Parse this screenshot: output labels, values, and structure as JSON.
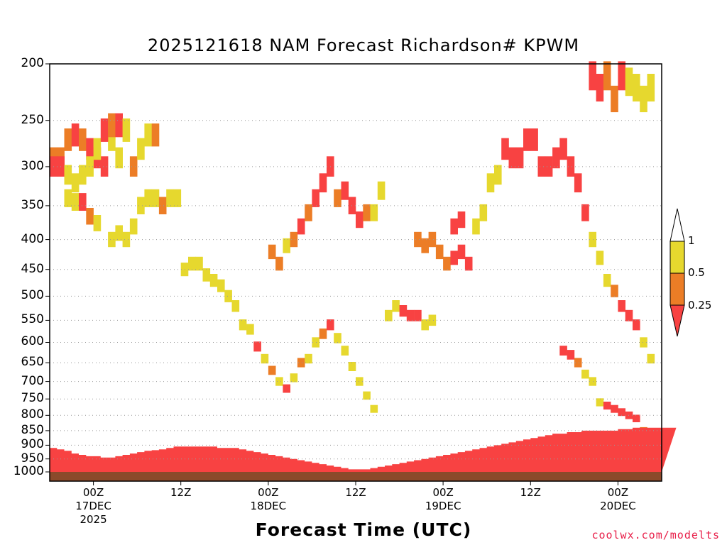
{
  "colors": {
    "yellow": "#e6d82e",
    "orange": "#ec7d26",
    "red": "#f84242",
    "ground": "#8b4a2b"
  },
  "credit": "coolwx.com/modelts",
  "chart_data": {
    "type": "heatmap",
    "title": "2025121618 NAM Forecast Richardson# KPWM",
    "xlabel": "Forecast Time (UTC)",
    "ylabel": "",
    "y_scale": "log-pressure",
    "y_ticks": [
      200,
      250,
      300,
      350,
      400,
      450,
      500,
      550,
      600,
      650,
      700,
      750,
      800,
      850,
      900,
      950,
      1000
    ],
    "ylim": [
      1000,
      200
    ],
    "x_start": "2025-12-16 18Z",
    "x_step_hours": 1,
    "x_ticks": [
      {
        "hour": 6,
        "label": "00Z",
        "date": "17DEC",
        "year": "2025"
      },
      {
        "hour": 18,
        "label": "12Z",
        "date": "",
        "year": ""
      },
      {
        "hour": 30,
        "label": "00Z",
        "date": "18DEC",
        "year": ""
      },
      {
        "hour": 42,
        "label": "12Z",
        "date": "",
        "year": ""
      },
      {
        "hour": 54,
        "label": "00Z",
        "date": "19DEC",
        "year": ""
      },
      {
        "hour": 66,
        "label": "12Z",
        "date": "",
        "year": ""
      },
      {
        "hour": 78,
        "label": "00Z",
        "date": "20DEC",
        "year": ""
      }
    ],
    "legend": {
      "placement": "right",
      "levels": [
        {
          "label": "1",
          "color": "#ffffff"
        },
        {
          "label": "0.5",
          "color": "#e6d82e"
        },
        {
          "label": "0.25",
          "color": "#ec7d26"
        },
        {
          "label": "",
          "color": "#f84242"
        }
      ]
    },
    "cell_legend": {
      "1": "0.5-1",
      "2": "0.25-0.5",
      "3": "<0.25"
    },
    "cells": [
      [
        0,
        290,
        2
      ],
      [
        1,
        290,
        2
      ],
      [
        2,
        270,
        2
      ],
      [
        3,
        265,
        3
      ],
      [
        4,
        270,
        2
      ],
      [
        5,
        280,
        3
      ],
      [
        6,
        290,
        3
      ],
      [
        7,
        300,
        3
      ],
      [
        8,
        270,
        1
      ],
      [
        9,
        290,
        1
      ],
      [
        0,
        300,
        3
      ],
      [
        1,
        300,
        3
      ],
      [
        2,
        310,
        1
      ],
      [
        3,
        320,
        1
      ],
      [
        4,
        310,
        1
      ],
      [
        5,
        300,
        1
      ],
      [
        6,
        280,
        1
      ],
      [
        7,
        260,
        3
      ],
      [
        8,
        255,
        2
      ],
      [
        9,
        255,
        3
      ],
      [
        10,
        260,
        1
      ],
      [
        11,
        300,
        2
      ],
      [
        12,
        280,
        1
      ],
      [
        13,
        265,
        1
      ],
      [
        14,
        265,
        2
      ],
      [
        2,
        340,
        1
      ],
      [
        3,
        345,
        1
      ],
      [
        4,
        345,
        3
      ],
      [
        5,
        365,
        2
      ],
      [
        6,
        375,
        1
      ],
      [
        8,
        400,
        1
      ],
      [
        9,
        390,
        1
      ],
      [
        10,
        400,
        1
      ],
      [
        11,
        380,
        1
      ],
      [
        12,
        350,
        1
      ],
      [
        13,
        340,
        1
      ],
      [
        14,
        340,
        1
      ],
      [
        15,
        350,
        2
      ],
      [
        16,
        340,
        1
      ],
      [
        17,
        340,
        1
      ],
      [
        18,
        450,
        1
      ],
      [
        19,
        440,
        1
      ],
      [
        20,
        440,
        1
      ],
      [
        21,
        460,
        1
      ],
      [
        22,
        470,
        1
      ],
      [
        23,
        480,
        1
      ],
      [
        24,
        500,
        1
      ],
      [
        25,
        520,
        1
      ],
      [
        26,
        560,
        1
      ],
      [
        27,
        570,
        1
      ],
      [
        28,
        610,
        3
      ],
      [
        29,
        640,
        1
      ],
      [
        30,
        670,
        2
      ],
      [
        31,
        700,
        1
      ],
      [
        32,
        720,
        3
      ],
      [
        33,
        690,
        1
      ],
      [
        34,
        650,
        2
      ],
      [
        35,
        640,
        1
      ],
      [
        36,
        600,
        1
      ],
      [
        37,
        580,
        2
      ],
      [
        38,
        560,
        3
      ],
      [
        39,
        590,
        1
      ],
      [
        40,
        620,
        1
      ],
      [
        41,
        660,
        1
      ],
      [
        42,
        700,
        1
      ],
      [
        43,
        740,
        1
      ],
      [
        44,
        780,
        1
      ],
      [
        30,
        420,
        2
      ],
      [
        31,
        440,
        2
      ],
      [
        32,
        410,
        1
      ],
      [
        33,
        400,
        2
      ],
      [
        34,
        380,
        3
      ],
      [
        35,
        360,
        2
      ],
      [
        36,
        340,
        3
      ],
      [
        37,
        320,
        3
      ],
      [
        38,
        300,
        3
      ],
      [
        39,
        340,
        2
      ],
      [
        40,
        330,
        3
      ],
      [
        41,
        350,
        3
      ],
      [
        42,
        370,
        3
      ],
      [
        43,
        360,
        2
      ],
      [
        44,
        360,
        1
      ],
      [
        45,
        330,
        1
      ],
      [
        46,
        540,
        1
      ],
      [
        47,
        520,
        1
      ],
      [
        48,
        530,
        3
      ],
      [
        49,
        540,
        3
      ],
      [
        50,
        540,
        3
      ],
      [
        51,
        560,
        1
      ],
      [
        52,
        550,
        1
      ],
      [
        50,
        400,
        2
      ],
      [
        51,
        410,
        2
      ],
      [
        52,
        400,
        2
      ],
      [
        53,
        420,
        2
      ],
      [
        54,
        440,
        2
      ],
      [
        55,
        430,
        3
      ],
      [
        56,
        420,
        3
      ],
      [
        57,
        440,
        3
      ],
      [
        55,
        380,
        3
      ],
      [
        56,
        370,
        3
      ],
      [
        58,
        380,
        1
      ],
      [
        59,
        360,
        1
      ],
      [
        60,
        320,
        1
      ],
      [
        61,
        310,
        1
      ],
      [
        62,
        280,
        3
      ],
      [
        63,
        290,
        3
      ],
      [
        64,
        290,
        3
      ],
      [
        65,
        270,
        3
      ],
      [
        66,
        270,
        3
      ],
      [
        67,
        300,
        3
      ],
      [
        68,
        300,
        3
      ],
      [
        69,
        290,
        3
      ],
      [
        70,
        280,
        3
      ],
      [
        71,
        300,
        3
      ],
      [
        72,
        320,
        3
      ],
      [
        73,
        360,
        3
      ],
      [
        74,
        400,
        1
      ],
      [
        75,
        430,
        1
      ],
      [
        76,
        470,
        1
      ],
      [
        77,
        490,
        2
      ],
      [
        78,
        520,
        3
      ],
      [
        79,
        540,
        3
      ],
      [
        80,
        560,
        3
      ],
      [
        81,
        600,
        1
      ],
      [
        82,
        640,
        1
      ],
      [
        70,
        620,
        3
      ],
      [
        71,
        630,
        3
      ],
      [
        72,
        650,
        2
      ],
      [
        73,
        680,
        1
      ],
      [
        74,
        700,
        1
      ],
      [
        75,
        760,
        1
      ],
      [
        76,
        770,
        3
      ],
      [
        77,
        780,
        3
      ],
      [
        78,
        790,
        3
      ],
      [
        79,
        800,
        3
      ],
      [
        80,
        810,
        3
      ],
      [
        81,
        850,
        2
      ],
      [
        82,
        860,
        3
      ],
      [
        83,
        880,
        3
      ],
      [
        84,
        880,
        3
      ],
      [
        74,
        210,
        3
      ],
      [
        75,
        220,
        3
      ],
      [
        76,
        210,
        2
      ],
      [
        77,
        230,
        2
      ],
      [
        78,
        210,
        3
      ],
      [
        79,
        215,
        1
      ],
      [
        80,
        220,
        1
      ],
      [
        81,
        230,
        1
      ],
      [
        82,
        220,
        1
      ]
    ],
    "boundary_layer_top_hpa": [
      910,
      915,
      920,
      930,
      935,
      940,
      940,
      945,
      945,
      940,
      935,
      930,
      925,
      920,
      918,
      915,
      910,
      905,
      905,
      905,
      905,
      905,
      905,
      910,
      910,
      910,
      915,
      920,
      925,
      930,
      935,
      940,
      945,
      950,
      955,
      960,
      965,
      970,
      975,
      980,
      985,
      990,
      990,
      990,
      985,
      980,
      975,
      970,
      965,
      960,
      955,
      950,
      945,
      940,
      935,
      930,
      925,
      920,
      915,
      910,
      905,
      900,
      895,
      890,
      885,
      880,
      875,
      870,
      865,
      860,
      860,
      855,
      855,
      850,
      850,
      850,
      850,
      850,
      845,
      845,
      840,
      840,
      840,
      840,
      840,
      840
    ]
  }
}
